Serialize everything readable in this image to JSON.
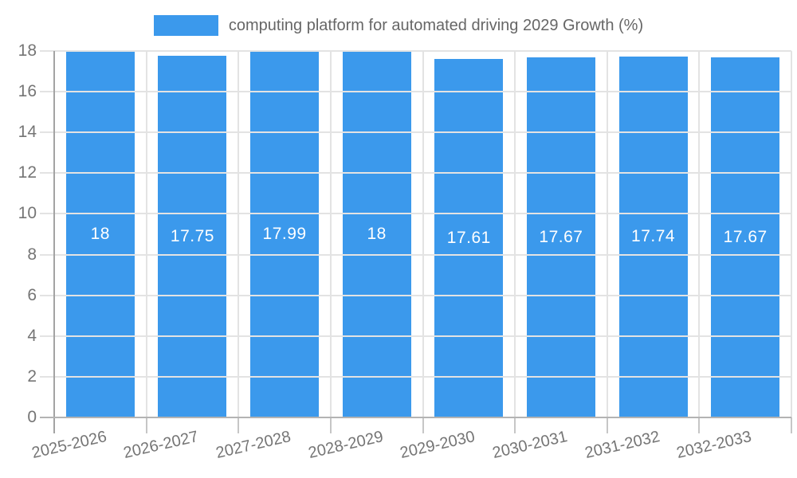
{
  "chart_data": {
    "type": "bar",
    "title": "computing platform for automated driving 2029 Growth (%)",
    "legend_position": "top",
    "categories": [
      "2025-2026",
      "2026-2027",
      "2027-2028",
      "2028-2029",
      "2029-2030",
      "2030-2031",
      "2031-2032",
      "2032-2033"
    ],
    "values": [
      18,
      17.75,
      17.99,
      18,
      17.61,
      17.67,
      17.74,
      17.67
    ],
    "value_labels": [
      "18",
      "17.75",
      "17.99",
      "18",
      "17.61",
      "17.67",
      "17.74",
      "17.67"
    ],
    "xlabel": "",
    "ylabel": "",
    "ylim": [
      0,
      18
    ],
    "yticks": [
      0,
      2,
      4,
      6,
      8,
      10,
      12,
      14,
      16,
      18
    ],
    "grid": true,
    "colors": {
      "bar": "#3b99ec",
      "value_label": "#ffffff",
      "grid_line": "#e3e3e3",
      "boundary_tick": "#c6c6c6",
      "axis_y": "#a3a3a3",
      "axis_x": "#b3b3b3",
      "tick_label": "#757575",
      "legend_text": "#666666",
      "background": "#ffffff"
    }
  }
}
